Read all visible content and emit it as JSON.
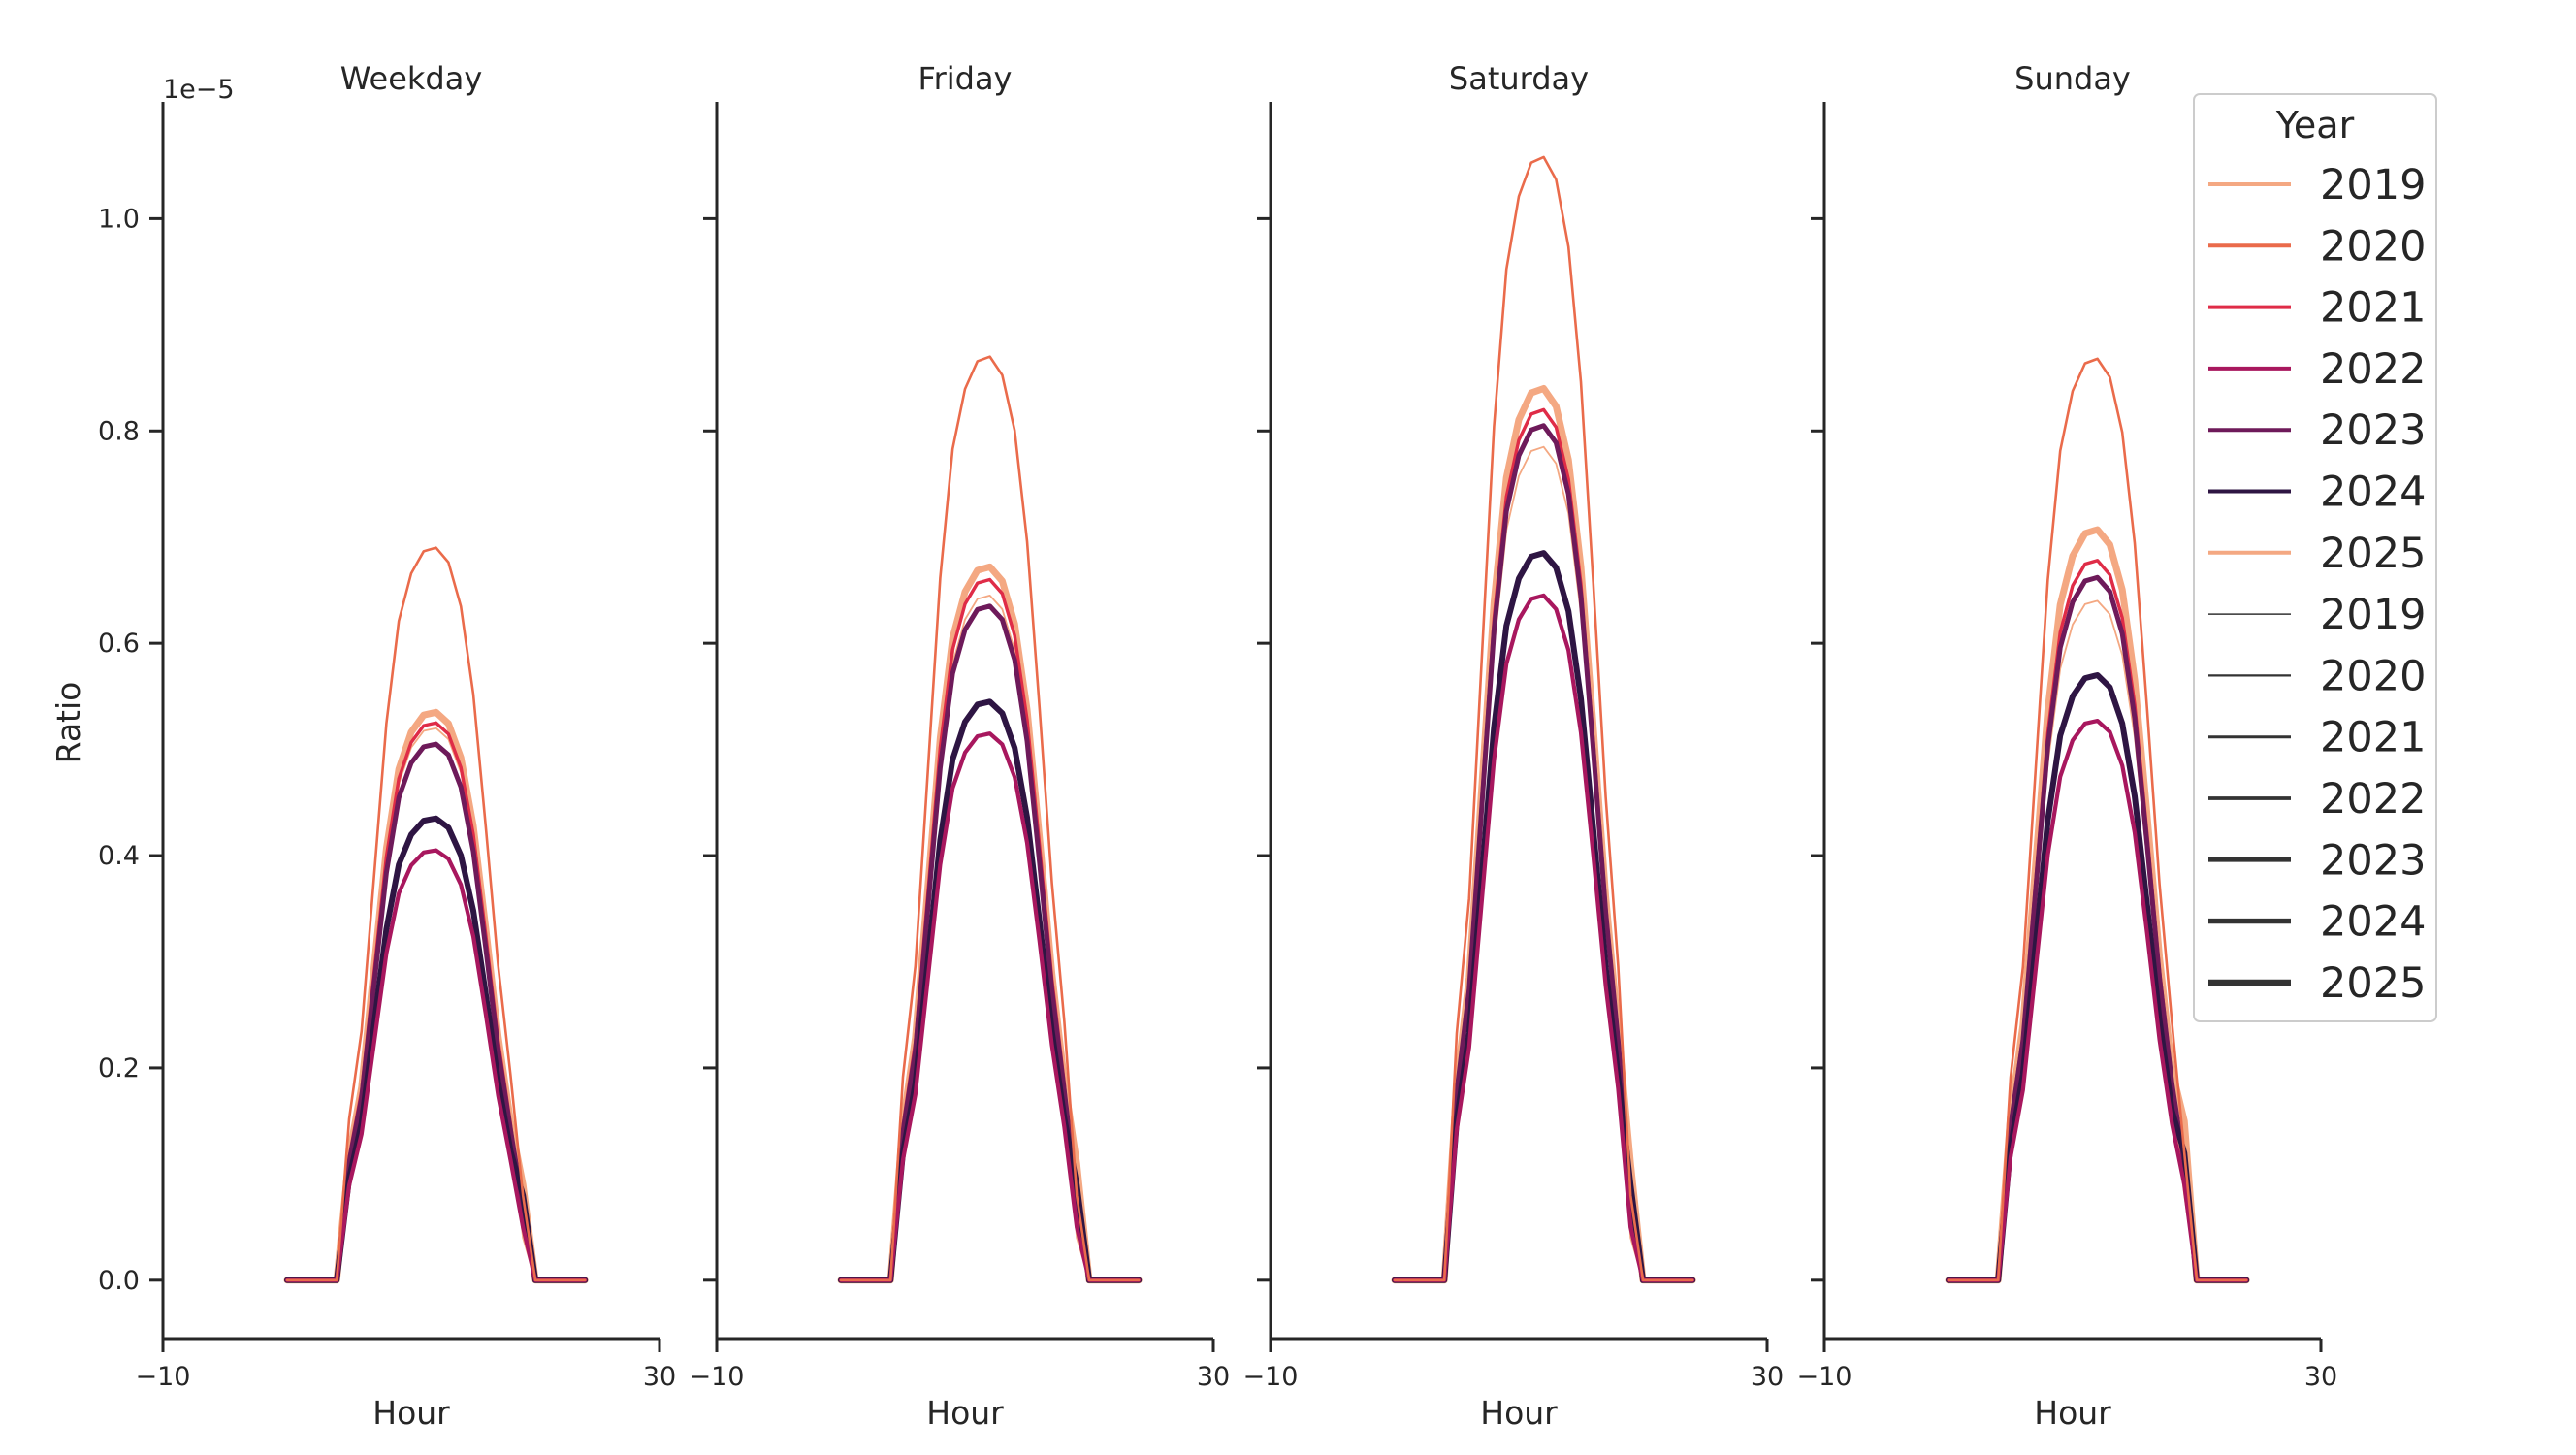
{
  "chart_data": {
    "type": "line",
    "offset_label": "1e−5",
    "ylabel": "Ratio",
    "xlabel": "Hour",
    "xlim": [
      -10,
      30
    ],
    "ylim": [
      -0.055,
      1.11
    ],
    "x_ticks": [
      -10,
      30
    ],
    "x_tick_labels": [
      "−10",
      "30"
    ],
    "y_ticks": [
      0.0,
      0.2,
      0.4,
      0.6,
      0.8,
      1.0
    ],
    "y_tick_labels": [
      "0.0",
      "0.2",
      "0.4",
      "0.6",
      "0.8",
      "1.0"
    ],
    "grid": false,
    "legend": {
      "title": "Year",
      "placement": "upper-right",
      "color_entries": [
        {
          "label": "2019",
          "color": "#f4a882"
        },
        {
          "label": "2020",
          "color": "#ea6b4b"
        },
        {
          "label": "2021",
          "color": "#df2c47"
        },
        {
          "label": "2022",
          "color": "#a8175e"
        },
        {
          "label": "2023",
          "color": "#6e1a5a"
        },
        {
          "label": "2024",
          "color": "#2e1543"
        },
        {
          "label": "2025",
          "color": "#f4a882"
        }
      ],
      "size_entries": [
        {
          "label": "2019",
          "width": 1.5
        },
        {
          "label": "2020",
          "width": 2.2
        },
        {
          "label": "2021",
          "width": 3.0
        },
        {
          "label": "2022",
          "width": 3.8
        },
        {
          "label": "2023",
          "width": 4.6
        },
        {
          "label": "2024",
          "width": 5.4
        },
        {
          "label": "2025",
          "width": 6.4
        },
        {
          "label_color": "#333333"
        }
      ]
    },
    "hours": [
      0,
      1,
      2,
      3,
      4,
      5,
      6,
      7,
      8,
      9,
      10,
      11,
      12,
      13,
      14,
      15,
      16,
      17,
      18,
      19,
      20,
      21,
      22,
      23,
      24
    ],
    "panels": [
      {
        "title": "Weekday",
        "peaks": {
          "2019": 0.52,
          "2020": 0.69,
          "2021": 0.525,
          "2022": 0.405,
          "2023": 0.505,
          "2024": 0.435,
          "2025": 0.535
        },
        "tails": {
          "2019": 0.04,
          "2020": 0.08,
          "2021": 0.06,
          "2022": 0.05,
          "2023": 0.07,
          "2024": 0.08,
          "2025": 0.09
        }
      },
      {
        "title": "Friday",
        "peaks": {
          "2019": 0.645,
          "2020": 0.87,
          "2021": 0.66,
          "2022": 0.515,
          "2023": 0.635,
          "2024": 0.545,
          "2025": 0.672
        },
        "tails": {
          "2019": 0.04,
          "2020": 0.08,
          "2021": 0.06,
          "2022": 0.05,
          "2023": 0.08,
          "2024": 0.09,
          "2025": 0.11
        }
      },
      {
        "title": "Saturday",
        "peaks": {
          "2019": 0.785,
          "2020": 1.058,
          "2021": 0.82,
          "2022": 0.645,
          "2023": 0.805,
          "2024": 0.685,
          "2025": 0.84
        },
        "tails": {
          "2019": 0.04,
          "2020": 0.08,
          "2021": 0.06,
          "2022": 0.05,
          "2023": 0.08,
          "2024": 0.09,
          "2025": 0.11
        }
      },
      {
        "title": "Sunday",
        "peaks": {
          "2019": 0.64,
          "2020": 0.868,
          "2021": 0.678,
          "2022": 0.527,
          "2023": 0.662,
          "2024": 0.57,
          "2025": 0.707
        },
        "tails": {
          "2019": 0.08,
          "2020": 0.12,
          "2021": 0.1,
          "2022": 0.09,
          "2023": 0.11,
          "2024": 0.12,
          "2025": 0.15
        }
      }
    ],
    "series_years": [
      "2019",
      "2020",
      "2021",
      "2022",
      "2023",
      "2024",
      "2025"
    ]
  }
}
